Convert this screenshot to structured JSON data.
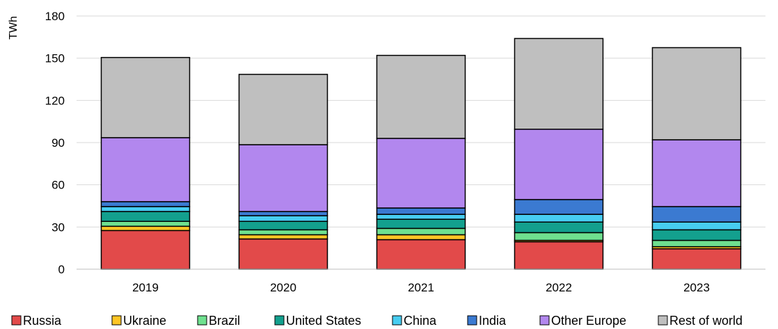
{
  "chart_data": {
    "type": "bar",
    "stacked": true,
    "ylabel": "TWh",
    "xlabel": "",
    "ylim": [
      0,
      180
    ],
    "yticks": [
      "0",
      "30",
      "60",
      "90",
      "120",
      "150",
      "180"
    ],
    "grid": true,
    "legend_position": "bottom",
    "categories": [
      "2019",
      "2020",
      "2021",
      "2022",
      "2023"
    ],
    "series": [
      {
        "name": "Russia",
        "color": "#e24a4a",
        "values": [
          27.5,
          21.5,
          21,
          19.5,
          14.5
        ]
      },
      {
        "name": "Ukraine",
        "color": "#ffc524",
        "values": [
          3,
          3,
          3.5,
          1,
          1.5
        ]
      },
      {
        "name": "Brazil",
        "color": "#6fe08f",
        "values": [
          3.5,
          3.5,
          4.5,
          5.5,
          4.5
        ]
      },
      {
        "name": "United States",
        "color": "#13a08e",
        "values": [
          7,
          6,
          6.5,
          7.5,
          7.5
        ]
      },
      {
        "name": "China",
        "color": "#47cdf1",
        "values": [
          3.5,
          4,
          3.5,
          5.5,
          5.5
        ]
      },
      {
        "name": "India",
        "color": "#3b7ad1",
        "values": [
          3.5,
          3,
          4.5,
          10.5,
          11
        ]
      },
      {
        "name": "Other Europe",
        "color": "#b287ee",
        "values": [
          45.5,
          47.5,
          49.5,
          50,
          47.5
        ]
      },
      {
        "name": "Rest of world",
        "color": "#bfbfbf",
        "values": [
          57,
          50,
          59,
          64.5,
          65.5
        ]
      }
    ]
  }
}
